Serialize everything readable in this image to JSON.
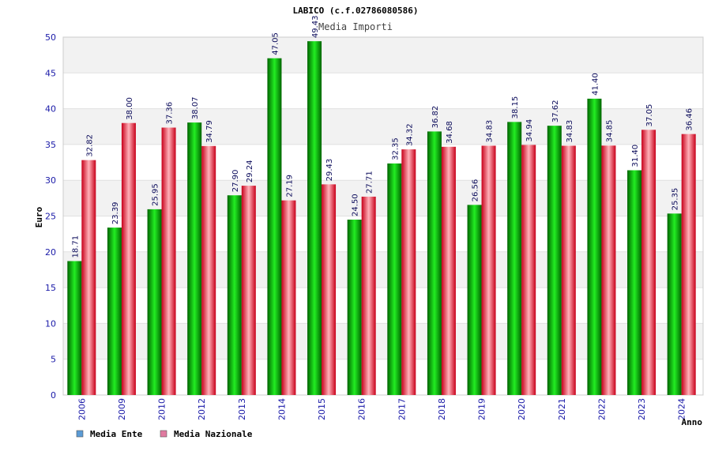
{
  "colors": {
    "ente": "#00bb00",
    "nazionale": "#e8202c",
    "legend_ente": "#5b9bd5",
    "legend_nazionale": "#e07aa0",
    "tick": "#1a1aa8",
    "grid_band": "#f2f2f2"
  },
  "chart_data": {
    "type": "bar",
    "title": "LABICO (c.f.02786080586)",
    "subtitle": "Media Importi",
    "xlabel": "Anno",
    "ylabel": "Euro",
    "ylim": [
      0,
      50
    ],
    "yticks": [
      0,
      5,
      10,
      15,
      20,
      25,
      30,
      35,
      40,
      45,
      50
    ],
    "categories": [
      "2006",
      "2009",
      "2010",
      "2012",
      "2013",
      "2014",
      "2015",
      "2016",
      "2017",
      "2018",
      "2019",
      "2020",
      "2021",
      "2022",
      "2023",
      "2024"
    ],
    "series": [
      {
        "name": "Media Ente",
        "values": [
          18.71,
          23.39,
          25.95,
          38.07,
          27.9,
          47.05,
          49.43,
          24.5,
          32.35,
          36.82,
          26.56,
          38.15,
          37.62,
          41.4,
          31.4,
          25.35
        ],
        "labels": [
          "18.71",
          "23.39",
          "25.95",
          "38.07",
          "27.90",
          "47.05",
          "49.43",
          "24.50",
          "32.35",
          "36.82",
          "26.56",
          "38.15",
          "37.62",
          "41.40",
          "31.40",
          "25.35"
        ]
      },
      {
        "name": "Media Nazionale",
        "values": [
          32.82,
          38.0,
          37.36,
          34.79,
          29.24,
          27.19,
          29.43,
          27.71,
          34.32,
          34.68,
          34.83,
          34.94,
          34.83,
          34.85,
          37.05,
          36.46
        ],
        "labels": [
          "32.82",
          "38.00",
          "37.36",
          "34.79",
          "29.24",
          "27.19",
          "29.43",
          "27.71",
          "34.32",
          "34.68",
          "34.83",
          "34.94",
          "34.83",
          "34.85",
          "37.05",
          "36.46"
        ]
      }
    ],
    "legend": [
      "Media Ente",
      "Media Nazionale"
    ]
  }
}
